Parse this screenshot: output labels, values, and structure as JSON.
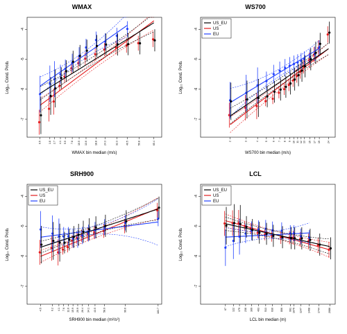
{
  "colors": {
    "US_EU": "#000000",
    "US": "#e31a1c",
    "EU": "#1f3fff"
  },
  "chart_data": [
    {
      "type": "scatter",
      "title": "WMAX",
      "xlabel": "WMAX bin median (m/s)",
      "ylabel": "Log₁₀ Cond. Prob.",
      "ylim": [
        -7.6,
        -3.6
      ],
      "yticks": [
        "-4",
        "-5",
        "-6",
        "-7"
      ],
      "xticks": [
        "0.5",
        "1.8",
        "2.7",
        "4.1",
        "5.5",
        "7.8",
        "10.5",
        "13.6",
        "18.8",
        "24.3",
        "32.3",
        "40.5",
        "50.8",
        "65.4"
      ],
      "legend": {
        "position": "none",
        "entries": []
      },
      "series": [
        {
          "name": "US_EU",
          "x": [
            0.5,
            1.8,
            2.7,
            4.1,
            5.5,
            7.8,
            10.5,
            13.6,
            18.8,
            24.3,
            32.3,
            40.5,
            50.8,
            65.4
          ],
          "y": [
            -6.8,
            -6.2,
            -6.0,
            -5.7,
            -5.5,
            -5.2,
            -5.0,
            -4.8,
            -4.6,
            -4.5,
            -4.45,
            -4.4,
            -4.35,
            -4.25
          ]
        },
        {
          "name": "US",
          "x": [
            0.5,
            1.8,
            2.7,
            4.1,
            5.5,
            7.8,
            10.5,
            13.6,
            18.8,
            24.3,
            32.3,
            40.5,
            50.8,
            65.4
          ],
          "y": [
            -7.1,
            -6.7,
            -6.5,
            -6.0,
            -5.7,
            -5.4,
            -5.2,
            -5.0,
            -4.8,
            -4.6,
            -4.5,
            -4.42,
            -4.35,
            -4.25
          ]
        },
        {
          "name": "EU",
          "x": [
            0.5,
            1.8,
            2.7,
            4.1,
            5.5,
            7.8,
            10.5,
            13.6,
            18.8,
            24.3,
            32.3,
            40.5
          ],
          "y": [
            -6.2,
            -5.8,
            -5.6,
            -5.4,
            -5.2,
            -5.0,
            -4.8,
            -4.55,
            -4.35,
            -4.45,
            -4.3,
            -4.1
          ]
        }
      ]
    },
    {
      "type": "scatter",
      "title": "WS700",
      "xlabel": "WS700 bin median (m/s)",
      "ylabel": "Log₁₀ Cond. Prob.",
      "ylim": [
        -7.6,
        -3.6
      ],
      "yticks": [
        "-4",
        "-5",
        "-6",
        "-7"
      ],
      "xticks": [
        "2",
        "3",
        "4",
        "5",
        "6",
        "7",
        "8",
        "9",
        "10",
        "11",
        "12",
        "13",
        "15",
        "17",
        "19",
        "24"
      ],
      "legend": {
        "position": "top-left",
        "entries": [
          "US_EU",
          "US",
          "EU"
        ]
      },
      "series": [
        {
          "name": "US_EU",
          "x": [
            2,
            3,
            4,
            5,
            6,
            7,
            8,
            9,
            10,
            11,
            12,
            13,
            15,
            17,
            19,
            24
          ],
          "y": [
            -6.5,
            -6.4,
            -6.3,
            -6.2,
            -6.0,
            -5.9,
            -5.8,
            -5.7,
            -5.6,
            -5.5,
            -5.4,
            -5.3,
            -5.1,
            -4.9,
            -4.6,
            -4.2
          ]
        },
        {
          "name": "US",
          "x": [
            2,
            3,
            4,
            5,
            6,
            7,
            8,
            9,
            10,
            11,
            12,
            13,
            15,
            17,
            19,
            24
          ],
          "y": [
            -6.9,
            -6.6,
            -6.5,
            -6.3,
            -6.2,
            -6.0,
            -5.9,
            -5.8,
            -5.7,
            -5.6,
            -5.5,
            -5.35,
            -5.15,
            -4.95,
            -4.7,
            -4.2
          ]
        },
        {
          "name": "EU",
          "x": [
            2,
            3,
            4,
            5,
            6,
            7,
            8,
            9,
            10,
            11,
            12,
            13,
            15,
            17,
            19
          ],
          "y": [
            -6.3,
            -6.1,
            -5.9,
            -5.8,
            -5.6,
            -5.5,
            -5.4,
            -5.3,
            -5.2,
            -5.1,
            -5.0,
            -4.9,
            -4.8,
            -4.7,
            -4.5
          ]
        }
      ]
    },
    {
      "type": "scatter",
      "title": "SRH900",
      "xlabel": "SRH900 bin median (m²/s²)",
      "ylabel": "Log₁₀ Cond. Prob.",
      "ylim": [
        -7.6,
        -3.6
      ],
      "yticks": [
        "-4",
        "-5",
        "-6",
        "-7"
      ],
      "xticks": [
        "-4.5",
        "0.2",
        "4.1",
        "7.6",
        "11.6",
        "15.9",
        "20.9",
        "26.4",
        "34.1",
        "43.5",
        "58.9",
        "99.6",
        "183.7"
      ],
      "legend": {
        "position": "top-left",
        "entries": [
          "US_EU",
          "US",
          "EU"
        ]
      },
      "series": [
        {
          "name": "US_EU",
          "x": [
            -4.5,
            0.2,
            4.1,
            7.6,
            11.6,
            15.9,
            20.9,
            26.4,
            34.1,
            43.5,
            58.9,
            99.6,
            183.7
          ],
          "y": [
            -5.5,
            -5.4,
            -5.5,
            -5.55,
            -5.5,
            -5.45,
            -5.4,
            -5.3,
            -5.2,
            -5.1,
            -5.0,
            -4.8,
            -4.3
          ]
        },
        {
          "name": "US",
          "x": [
            -4.5,
            0.2,
            4.1,
            7.6,
            11.6,
            15.9,
            20.9,
            26.4,
            34.1,
            43.5,
            58.9,
            99.6,
            183.7
          ],
          "y": [
            -5.8,
            -5.7,
            -5.9,
            -5.85,
            -5.8,
            -5.6,
            -5.5,
            -5.4,
            -5.3,
            -5.2,
            -5.1,
            -4.9,
            -4.35
          ]
        },
        {
          "name": "EU",
          "x": [
            -4.5,
            0.2,
            4.1,
            7.6,
            11.6,
            15.9,
            20.9,
            26.4,
            34.1,
            43.5,
            58.9,
            99.6,
            183.7
          ],
          "y": [
            -5.2,
            -5.3,
            -5.35,
            -5.3,
            -5.25,
            -5.3,
            -5.3,
            -5.2,
            -5.15,
            -5.1,
            -5.05,
            -4.95,
            -4.85
          ]
        }
      ]
    },
    {
      "type": "scatter",
      "title": "LCL",
      "xlabel": "LCL bin median (m)",
      "ylabel": "Log₁₀ Cond. Prob.",
      "ylim": [
        -7.6,
        -3.6
      ],
      "yticks": [
        "-4",
        "-5",
        "-6",
        "-7"
      ],
      "xticks": [
        "67",
        "122",
        "175",
        "238",
        "309",
        "403",
        "513",
        "630",
        "806",
        "991",
        "1075",
        "1247",
        "1468",
        "1744",
        "2086"
      ],
      "legend": {
        "position": "top-left",
        "entries": [
          "US_EU",
          "US",
          "EU"
        ]
      },
      "series": [
        {
          "name": "US_EU",
          "x": [
            67,
            122,
            175,
            238,
            309,
            403,
            513,
            630,
            806,
            991,
            1075,
            1247,
            1468,
            1744,
            2086
          ],
          "y": [
            -5.1,
            -5.0,
            -5.0,
            -5.05,
            -5.1,
            -5.15,
            -5.15,
            -5.2,
            -5.25,
            -5.3,
            -5.35,
            -5.4,
            -5.5,
            -5.7,
            -5.85
          ]
        },
        {
          "name": "US",
          "x": [
            67,
            122,
            175,
            238,
            309,
            403,
            513,
            630,
            806,
            991,
            1075,
            1247,
            1468,
            1744,
            2086
          ],
          "y": [
            -5.0,
            -4.95,
            -4.9,
            -4.95,
            -5.0,
            -5.1,
            -5.15,
            -5.2,
            -5.3,
            -5.35,
            -5.4,
            -5.5,
            -5.6,
            -5.75,
            -5.9
          ]
        },
        {
          "name": "EU",
          "x": [
            67,
            122,
            175,
            238,
            309,
            403,
            513,
            630,
            806,
            991,
            1075,
            1247,
            1468
          ],
          "y": [
            -5.6,
            -5.4,
            -5.3,
            -5.25,
            -5.2,
            -5.2,
            -5.2,
            -5.25,
            -5.25,
            -5.3,
            -5.25,
            -5.3,
            -5.3
          ]
        }
      ]
    }
  ]
}
